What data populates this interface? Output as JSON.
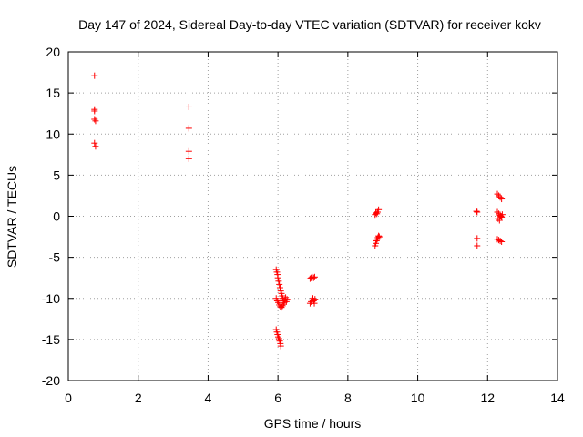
{
  "chart_data": {
    "type": "scatter",
    "title": "Day 147 of 2024, Sidereal Day-to-day VTEC variation (SDTVAR) for receiver kokv",
    "xlabel": "GPS time / hours",
    "ylabel": "SDTVAR / TECUs",
    "xlim": [
      0,
      14
    ],
    "ylim": [
      -20,
      20
    ],
    "xticks": [
      "0",
      "2",
      "4",
      "6",
      "8",
      "10",
      "12",
      "14"
    ],
    "yticks": [
      "20",
      "15",
      "10",
      "5",
      "0",
      "-5",
      "-10",
      "-15",
      "-20"
    ],
    "grid": true,
    "marker": "plus",
    "color": "#ff0000",
    "series": [
      {
        "name": "SDTVAR",
        "points": [
          [
            0.75,
            17.1
          ],
          [
            0.75,
            13.0
          ],
          [
            0.75,
            12.8
          ],
          [
            0.75,
            11.8
          ],
          [
            0.78,
            11.6
          ],
          [
            0.75,
            8.9
          ],
          [
            0.78,
            8.5
          ],
          [
            3.45,
            13.3
          ],
          [
            3.45,
            10.7
          ],
          [
            3.45,
            7.9
          ],
          [
            3.45,
            7.0
          ],
          [
            5.95,
            -6.5
          ],
          [
            5.97,
            -6.8
          ],
          [
            5.99,
            -7.1
          ],
          [
            6.0,
            -7.5
          ],
          [
            6.02,
            -7.9
          ],
          [
            6.04,
            -8.3
          ],
          [
            6.06,
            -8.7
          ],
          [
            6.08,
            -9.1
          ],
          [
            6.1,
            -9.4
          ],
          [
            6.12,
            -9.7
          ],
          [
            6.14,
            -10.0
          ],
          [
            6.16,
            -10.3
          ],
          [
            6.18,
            -10.5
          ],
          [
            6.2,
            -10.2
          ],
          [
            6.22,
            -9.9
          ],
          [
            6.24,
            -10.4
          ],
          [
            6.26,
            -10.1
          ],
          [
            5.95,
            -10.0
          ],
          [
            5.98,
            -10.3
          ],
          [
            6.01,
            -10.5
          ],
          [
            6.04,
            -10.8
          ],
          [
            6.07,
            -11.0
          ],
          [
            6.1,
            -11.1
          ],
          [
            6.13,
            -10.9
          ],
          [
            6.16,
            -10.7
          ],
          [
            5.95,
            -13.8
          ],
          [
            5.97,
            -14.1
          ],
          [
            5.99,
            -14.4
          ],
          [
            6.01,
            -14.7
          ],
          [
            6.03,
            -14.9
          ],
          [
            6.05,
            -15.2
          ],
          [
            6.07,
            -15.5
          ],
          [
            6.08,
            -15.8
          ],
          [
            6.92,
            -7.6
          ],
          [
            6.95,
            -7.5
          ],
          [
            6.98,
            -7.4
          ],
          [
            7.02,
            -7.5
          ],
          [
            7.05,
            -7.4
          ],
          [
            6.92,
            -10.6
          ],
          [
            6.95,
            -10.4
          ],
          [
            6.97,
            -10.2
          ],
          [
            7.0,
            -10.0
          ],
          [
            7.02,
            -10.3
          ],
          [
            7.04,
            -10.6
          ],
          [
            7.06,
            -10.1
          ],
          [
            8.78,
            0.2
          ],
          [
            8.8,
            0.4
          ],
          [
            8.83,
            0.3
          ],
          [
            8.85,
            0.5
          ],
          [
            8.88,
            0.8
          ],
          [
            8.78,
            -3.6
          ],
          [
            8.8,
            -3.3
          ],
          [
            8.82,
            -3.0
          ],
          [
            8.84,
            -2.8
          ],
          [
            8.86,
            -2.6
          ],
          [
            8.88,
            -2.4
          ],
          [
            8.9,
            -2.5
          ],
          [
            11.68,
            0.6
          ],
          [
            11.7,
            0.5
          ],
          [
            11.7,
            -2.7
          ],
          [
            11.7,
            -3.6
          ],
          [
            12.28,
            2.7
          ],
          [
            12.32,
            2.5
          ],
          [
            12.36,
            2.3
          ],
          [
            12.4,
            2.1
          ],
          [
            12.28,
            0.5
          ],
          [
            12.32,
            0.3
          ],
          [
            12.36,
            0.1
          ],
          [
            12.4,
            -0.1
          ],
          [
            12.3,
            -0.3
          ],
          [
            12.34,
            -0.5
          ],
          [
            12.38,
            0.0
          ],
          [
            12.42,
            0.2
          ],
          [
            12.28,
            -2.8
          ],
          [
            12.32,
            -2.9
          ],
          [
            12.36,
            -3.0
          ],
          [
            12.4,
            -3.1
          ]
        ]
      }
    ]
  }
}
